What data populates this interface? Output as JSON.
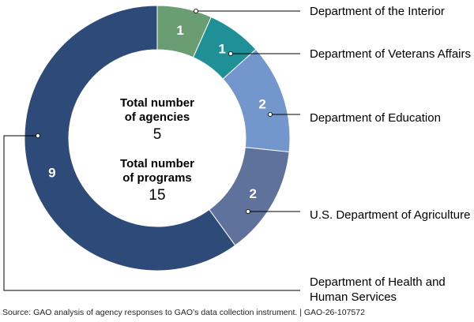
{
  "chart_data": {
    "type": "pie",
    "categories": [
      "Department of the Interior",
      "Department of Veterans Affairs",
      "Department of Education",
      "U.S. Department of Agriculture",
      "Department of Health and Human Services"
    ],
    "legend_lines": [
      [
        "Department of the Interior"
      ],
      [
        "Department of Veterans Affairs"
      ],
      [
        "Department of Education"
      ],
      [
        "U.S. Department of Agriculture"
      ],
      [
        "Department of Health and",
        "Human Services"
      ]
    ],
    "values": [
      1,
      1,
      2,
      2,
      9
    ],
    "colors": [
      "#6a9e72",
      "#1f9096",
      "#7396cc",
      "#5e729c",
      "#2e4a78"
    ],
    "center": {
      "agencies_label_line1": "Total number",
      "agencies_label_line2": "of agencies",
      "agencies_value": "5",
      "programs_label_line1": "Total number",
      "programs_label_line2": "of programs",
      "programs_value": "15"
    }
  },
  "source": "Source: GAO analysis of agency responses to GAO’s data collection instrument.  |  GAO-26-107572"
}
